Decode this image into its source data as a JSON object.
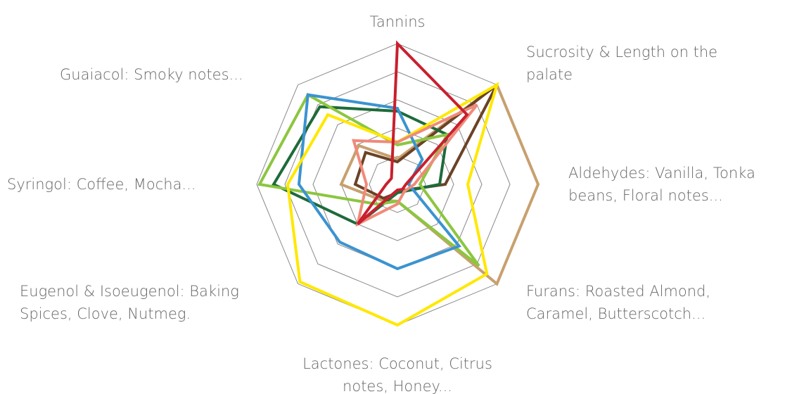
{
  "chart_data": {
    "type": "radar",
    "categories": [
      [
        "Tannins"
      ],
      [
        "Sucrosity & Length on the",
        "palate"
      ],
      [
        "Aldehydes: Vanilla, Tonka",
        "beans, Floral notes..."
      ],
      [
        "Furans: Roasted Almond,",
        "Caramel, Butterscotch..."
      ],
      [
        "Lactones: Coconut, Citrus",
        "notes, Honey..."
      ],
      [
        "Eugenol & Isoeugenol: Baking",
        "Spices, Clove, Nutmeg."
      ],
      [
        "Syringol: Coffee, Mocha..."
      ],
      [
        "Guaiacol: Smoky notes..."
      ]
    ],
    "rlim": [
      0,
      5
    ],
    "rticks": [
      1,
      2,
      3,
      4,
      5
    ],
    "grid": true,
    "series": [
      {
        "color": "#c8a06e",
        "values": [
          0.9,
          5,
          5,
          5,
          0.6,
          0.8,
          2,
          1.95
        ]
      },
      {
        "color": "#6b4226",
        "values": [
          0.8,
          5,
          1.7,
          0.3,
          0.3,
          0.7,
          1.5,
          1.6
        ]
      },
      {
        "color": "#1d6b3a",
        "values": [
          2.6,
          2.5,
          1.5,
          0.35,
          0.3,
          2,
          4.4,
          3.9
        ]
      },
      {
        "color": "#8cc63f",
        "values": [
          1.4,
          2.5,
          0.8,
          4.1,
          0.6,
          1,
          4.9,
          4.5
        ]
      },
      {
        "color": "#3b93d0",
        "values": [
          2.7,
          1.25,
          0.4,
          3.1,
          3,
          2.9,
          3.5,
          4.5
        ]
      },
      {
        "color": "#ffe800",
        "values": [
          1.5,
          5,
          2.5,
          4.5,
          5,
          4.9,
          3.9,
          3.5
        ]
      },
      {
        "color": "#f08a7a",
        "values": [
          1.5,
          4,
          0.6,
          0.35,
          0.7,
          2,
          1.1,
          2.2
        ]
      },
      {
        "color": "#c8202e",
        "values": [
          5,
          3.5,
          0.3,
          0.25,
          0.2,
          2,
          0.4,
          0.3
        ]
      }
    ]
  }
}
